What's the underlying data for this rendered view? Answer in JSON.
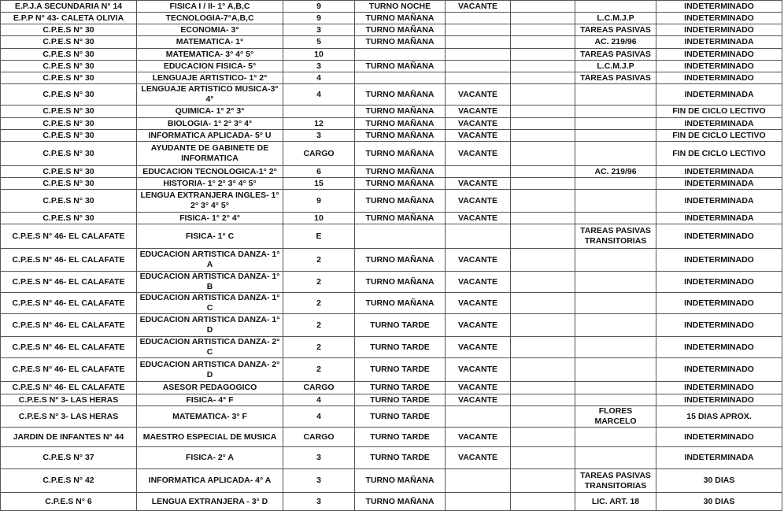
{
  "rows": [
    [
      "E.P.J.A SECUNDARIA N° 14",
      "FISICA I / II- 1° A,B,C",
      "9",
      "TURNO NOCHE",
      "VACANTE",
      "",
      "",
      "INDETERMINADO"
    ],
    [
      "E.P.P N° 43- CALETA OLIVIA",
      "TECNOLOGIA-7°A,B,C",
      "9",
      "TURNO MAÑANA",
      "",
      "",
      "L.C.M.J.P",
      "INDETERMINADO"
    ],
    [
      "C.P.E.S N° 30",
      "ECONOMIA- 3°",
      "3",
      "TURNO MAÑANA",
      "",
      "",
      "TAREAS PASIVAS",
      "INDETERMINADO"
    ],
    [
      "C.P.E.S N° 30",
      "MATEMATICA- 1°",
      "5",
      "TURNO MAÑANA",
      "",
      "",
      "AC. 219/96",
      "INDETERMINADA"
    ],
    [
      "C.P.E.S N° 30",
      "MATEMATICA- 3° 4° 5°",
      "10",
      "",
      "",
      "",
      "TAREAS PASIVAS",
      "INDETERMINADO"
    ],
    [
      "C.P.E.S N° 30",
      "EDUCACION FISICA- 5°",
      "3",
      "TURNO MAÑANA",
      "",
      "",
      "L.C.M.J.P",
      "INDETERMINADO"
    ],
    [
      "C.P.E.S N° 30",
      "LENGUAJE ARTISTICO- 1° 2°",
      "4",
      "",
      "",
      "",
      "TAREAS PASIVAS",
      "INDETERMINADO"
    ],
    [
      "C.P.E.S N° 30",
      "LENGUAJE ARTISTICO MUSICA-3° 4°",
      "4",
      "TURNO MAÑANA",
      "VACANTE",
      "",
      "",
      "INDETERMINADA"
    ],
    [
      "C.P.E.S N° 30",
      "QUIMICA- 1° 2° 3°",
      "",
      "TURNO MAÑANA",
      "VACANTE",
      "",
      "",
      "FIN DE CICLO LECTIVO"
    ],
    [
      "C.P.E.S N° 30",
      "BIOLOGIA- 1° 2° 3° 4°",
      "12",
      "TURNO MAÑANA",
      "VACANTE",
      "",
      "",
      "INDETERMINADA"
    ],
    [
      "C.P.E.S N° 30",
      "INFORMATICA APLICADA- 5° U",
      "3",
      "TURNO MAÑANA",
      "VACANTE",
      "",
      "",
      "FIN DE CICLO LECTIVO"
    ],
    [
      "C.P.E.S N° 30",
      "AYUDANTE DE GABINETE DE INFORMATICA",
      "CARGO",
      "TURNO MAÑANA",
      "VACANTE",
      "",
      "",
      "FIN DE CICLO LECTIVO"
    ],
    [
      "C.P.E.S N° 30",
      "EDUCACION TECNOLOGICA-1° 2°",
      "6",
      "TURNO MAÑANA",
      "",
      "",
      "AC. 219/96",
      "INDETERMINADA"
    ],
    [
      "C.P.E.S N° 30",
      "HISTORIA- 1° 2° 3° 4° 5°",
      "15",
      "TURNO MAÑANA",
      "VACANTE",
      "",
      "",
      "INDETERMINADA"
    ],
    [
      "C.P.E.S N° 30",
      "LENGUA EXTRANJERA INGLES- 1° 2° 3° 4° 5°",
      "9",
      "TURNO MAÑANA",
      "VACANTE",
      "",
      "",
      "INDETERMINADA"
    ],
    [
      "C.P.E.S N° 30",
      "FISICA- 1° 2° 4°",
      "10",
      "TURNO MAÑANA",
      "VACANTE",
      "",
      "",
      "INDETERMINADA"
    ],
    [
      "C.P.E.S N° 46- EL CALAFATE",
      "FISICA- 1° C",
      "E",
      "",
      "",
      "",
      "TAREAS PASIVAS TRANSITORIAS",
      "INDETERMINADO"
    ],
    [
      "C.P.E.S N° 46- EL CALAFATE",
      "EDUCACION ARTISTICA DANZA- 1° A",
      "2",
      "TURNO MAÑANA",
      "VACANTE",
      "",
      "",
      "INDETERMINADO"
    ],
    [
      "C.P.E.S N° 46- EL CALAFATE",
      "EDUCACION ARTISTICA DANZA- 1° B",
      "2",
      "TURNO MAÑANA",
      "VACANTE",
      "",
      "",
      "INDETERMINADO"
    ],
    [
      "C.P.E.S N° 46- EL CALAFATE",
      "EDUCACION ARTISTICA DANZA- 1° C",
      "2",
      "TURNO MAÑANA",
      "VACANTE",
      "",
      "",
      "INDETERMINADO"
    ],
    [
      "C.P.E.S N° 46- EL CALAFATE",
      "EDUCACION ARTISTICA DANZA- 1° D",
      "2",
      "TURNO TARDE",
      "VACANTE",
      "",
      "",
      "INDETERMINADO"
    ],
    [
      "C.P.E.S N° 46- EL CALAFATE",
      "EDUCACION ARTISTICA DANZA- 2° C",
      "2",
      "TURNO TARDE",
      "VACANTE",
      "",
      "",
      "INDETERMINADO"
    ],
    [
      "C.P.E.S N° 46- EL CALAFATE",
      "EDUCACION ARTISTICA DANZA- 2° D",
      "2",
      "TURNO TARDE",
      "VACANTE",
      "",
      "",
      "INDETERMINADO"
    ],
    [
      "C.P.E.S N° 46- EL CALAFATE",
      "ASESOR PEDAGOGICO",
      "CARGO",
      "TURNO TARDE",
      "VACANTE",
      "",
      "",
      "INDETERMINADO"
    ],
    [
      "C.P.E.S N° 3- LAS HERAS",
      "FISICA- 4° F",
      "4",
      "TURNO TARDE",
      "VACANTE",
      "",
      "",
      "INDETERMINADO"
    ],
    [
      "C.P.E.S N° 3- LAS HERAS",
      "MATEMATICA- 3° F",
      "4",
      "TURNO TARDE",
      "",
      "",
      "FLORES MARCELO",
      "15 DIAS APROX."
    ],
    [
      "JARDIN DE INFANTES N° 44",
      "MAESTRO ESPECIAL DE MUSICA",
      "CARGO",
      "TURNO TARDE",
      "VACANTE",
      "",
      "",
      "INDETERMINADO"
    ],
    [
      "C.P.E.S N° 37",
      "FISICA- 2° A",
      "3",
      "TURNO TARDE",
      "VACANTE",
      "",
      "",
      "INDETERMINADA"
    ],
    [
      "C.P.E.S N° 42",
      "INFORMATICA APLICADA- 4° A",
      "3",
      "TURNO MAÑANA",
      "",
      "",
      "TAREAS PASIVAS TRANSITORIAS",
      "30 DIAS"
    ],
    [
      "C.P.E.S N° 6",
      "LENGUA EXTRANJERA - 3° D",
      "3",
      "TURNO MAÑANA",
      "",
      "",
      "LIC. ART. 18",
      "30 DIAS"
    ]
  ]
}
